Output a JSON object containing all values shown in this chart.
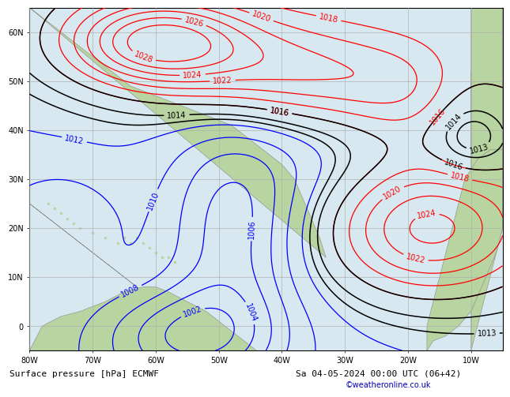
{
  "bottom_label": "Surface pressure [hPa] ECMWF",
  "date_label": "Sa 04-05-2024 00:00 UTC (06+42)",
  "credit": "©weatheronline.co.uk",
  "figsize": [
    6.34,
    4.9
  ],
  "dpi": 100,
  "background_color": "#d8e8f0",
  "land_color": "#b8d4a0",
  "grid_color": "#b0b0b0",
  "grid_linewidth": 0.5,
  "label_fontsize": 7,
  "bottom_fontsize": 8,
  "credit_fontsize": 7,
  "credit_color": "#0000bb",
  "lon_ticks": [
    -80,
    -70,
    -60,
    -50,
    -40,
    -30,
    -20,
    -10
  ],
  "lat_ticks": [
    0,
    10,
    20,
    30,
    40,
    50,
    60
  ],
  "tick_fontsize": 7,
  "xlim": [
    -80,
    -5
  ],
  "ylim": [
    -5,
    65
  ]
}
